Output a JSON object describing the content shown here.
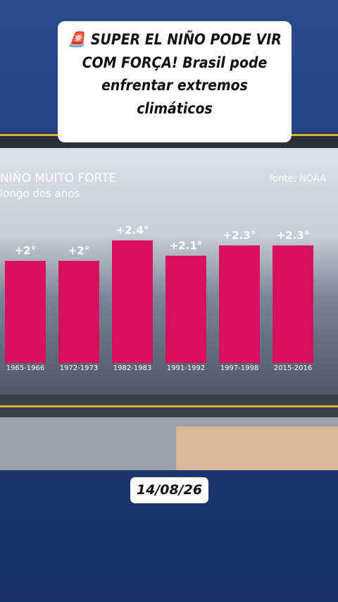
{
  "caption": "🚨 SUPER EL NIÑO PODE VIR COM FORÇA! Brasil pode enfrentar extremos climáticos",
  "date": "14/08/26",
  "chart_data": {
    "type": "bar",
    "title": "NIÑO MUITO FORTE",
    "subtitle": "longo dos anos",
    "source": "fonte: NOAA",
    "categories": [
      "1965-1966",
      "1972-1973",
      "1982-1983",
      "1991-1992",
      "1997-1998",
      "2015-2016"
    ],
    "values": [
      2,
      2,
      2.4,
      2.1,
      2.3,
      2.3
    ],
    "value_labels": [
      "+2°",
      "+2°",
      "+2.4°",
      "+2.1°",
      "+2.3°",
      "+2.3°"
    ],
    "color": "#d80f5c"
  }
}
